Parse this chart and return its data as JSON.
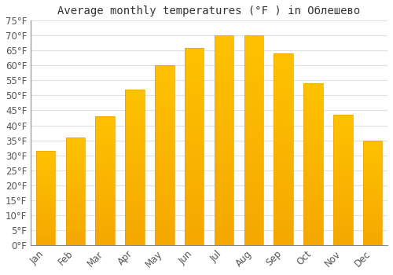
{
  "title": "Average monthly temperatures (°F ) in Облешево",
  "months": [
    "Jan",
    "Feb",
    "Mar",
    "Apr",
    "May",
    "Jun",
    "Jul",
    "Aug",
    "Sep",
    "Oct",
    "Nov",
    "Dec"
  ],
  "values": [
    31.5,
    36.0,
    43.0,
    52.0,
    60.0,
    66.0,
    70.0,
    70.0,
    64.0,
    54.0,
    43.5,
    35.0
  ],
  "bar_color_top": "#FFC200",
  "bar_color_bottom": "#F5A800",
  "bar_edge_color": "#E8A000",
  "ylim": [
    0,
    75
  ],
  "yticks": [
    0,
    5,
    10,
    15,
    20,
    25,
    30,
    35,
    40,
    45,
    50,
    55,
    60,
    65,
    70,
    75
  ],
  "ytick_labels": [
    "0°F",
    "5°F",
    "10°F",
    "15°F",
    "20°F",
    "25°F",
    "30°F",
    "35°F",
    "40°F",
    "45°F",
    "50°F",
    "55°F",
    "60°F",
    "65°F",
    "70°F",
    "75°F"
  ],
  "background_color": "#ffffff",
  "plot_bg_color": "#ffffff",
  "grid_color": "#e0e0e0",
  "title_fontsize": 10,
  "tick_fontsize": 8.5,
  "bar_width": 0.65
}
